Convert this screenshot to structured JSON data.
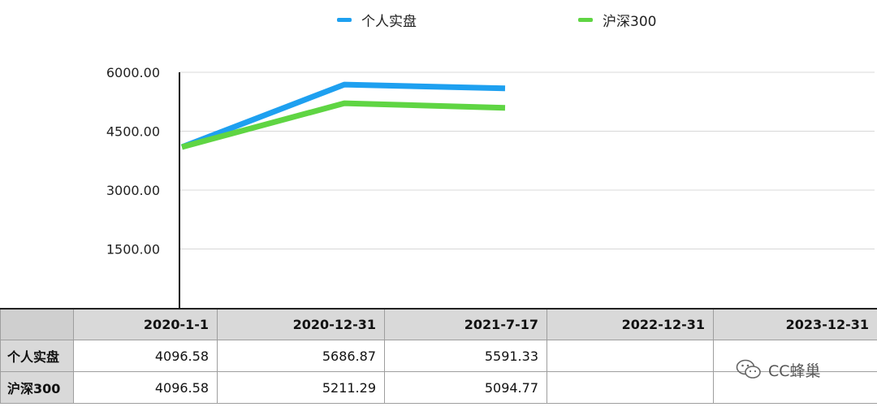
{
  "chart_data": {
    "type": "line",
    "categories": [
      "2020-1-1",
      "2020-12-31",
      "2021-7-17",
      "2022-12-31",
      "2023-12-31"
    ],
    "series": [
      {
        "name": "个人实盘",
        "values": [
          4096.58,
          5686.87,
          5591.33,
          null,
          null
        ],
        "color": "#1ea0f0"
      },
      {
        "name": "沪深300",
        "values": [
          4096.58,
          5211.29,
          5094.77,
          null,
          null
        ],
        "color": "#5fd543"
      }
    ],
    "yticks": [
      "6000.00",
      "4500.00",
      "3000.00",
      "1500.00"
    ],
    "ytick_values": [
      6000,
      4500,
      3000,
      1500
    ],
    "ylim": [
      0,
      6000
    ],
    "grid": true,
    "legend_position": "top-center",
    "title": "",
    "xlabel": "",
    "ylabel": ""
  },
  "table": {
    "columns": [
      "2020-1-1",
      "2020-12-31",
      "2021-7-17",
      "2022-12-31",
      "2023-12-31"
    ],
    "rows": [
      {
        "label": "个人实盘",
        "cells": [
          "4096.58",
          "5686.87",
          "5591.33",
          "",
          ""
        ]
      },
      {
        "label": "沪深300",
        "cells": [
          "4096.58",
          "5211.29",
          "5094.77",
          "",
          ""
        ]
      }
    ]
  },
  "watermark": {
    "text": "CC蜂巢",
    "icon": "wechat-chat-icon"
  }
}
